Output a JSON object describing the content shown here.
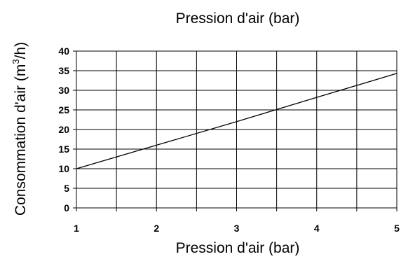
{
  "chart_data": {
    "type": "line",
    "title": "Pression d'air (bar)",
    "xlabel": "Pression d'air (bar)",
    "ylabel": {
      "prefix": "Consommation d'air  (m",
      "superscript": "3",
      "suffix": "/h)"
    },
    "xlim": [
      1,
      5
    ],
    "ylim": [
      0,
      40
    ],
    "x_ticks": [
      "1",
      "2",
      "3",
      "4",
      "5"
    ],
    "y_ticks": [
      "0",
      "5",
      "10",
      "15",
      "20",
      "25",
      "30",
      "35",
      "40"
    ],
    "x_gridlines": [
      1,
      1.5,
      2,
      2.5,
      3,
      3.5,
      4,
      4.5,
      5
    ],
    "y_gridlines": [
      0,
      5,
      10,
      15,
      20,
      25,
      30,
      35,
      40
    ],
    "grid": true,
    "legend": "none",
    "series": [
      {
        "x": [
          1,
          2,
          3,
          4,
          5
        ],
        "y": [
          10,
          16,
          22,
          28.2,
          34.3
        ],
        "color": "#000000"
      }
    ]
  }
}
